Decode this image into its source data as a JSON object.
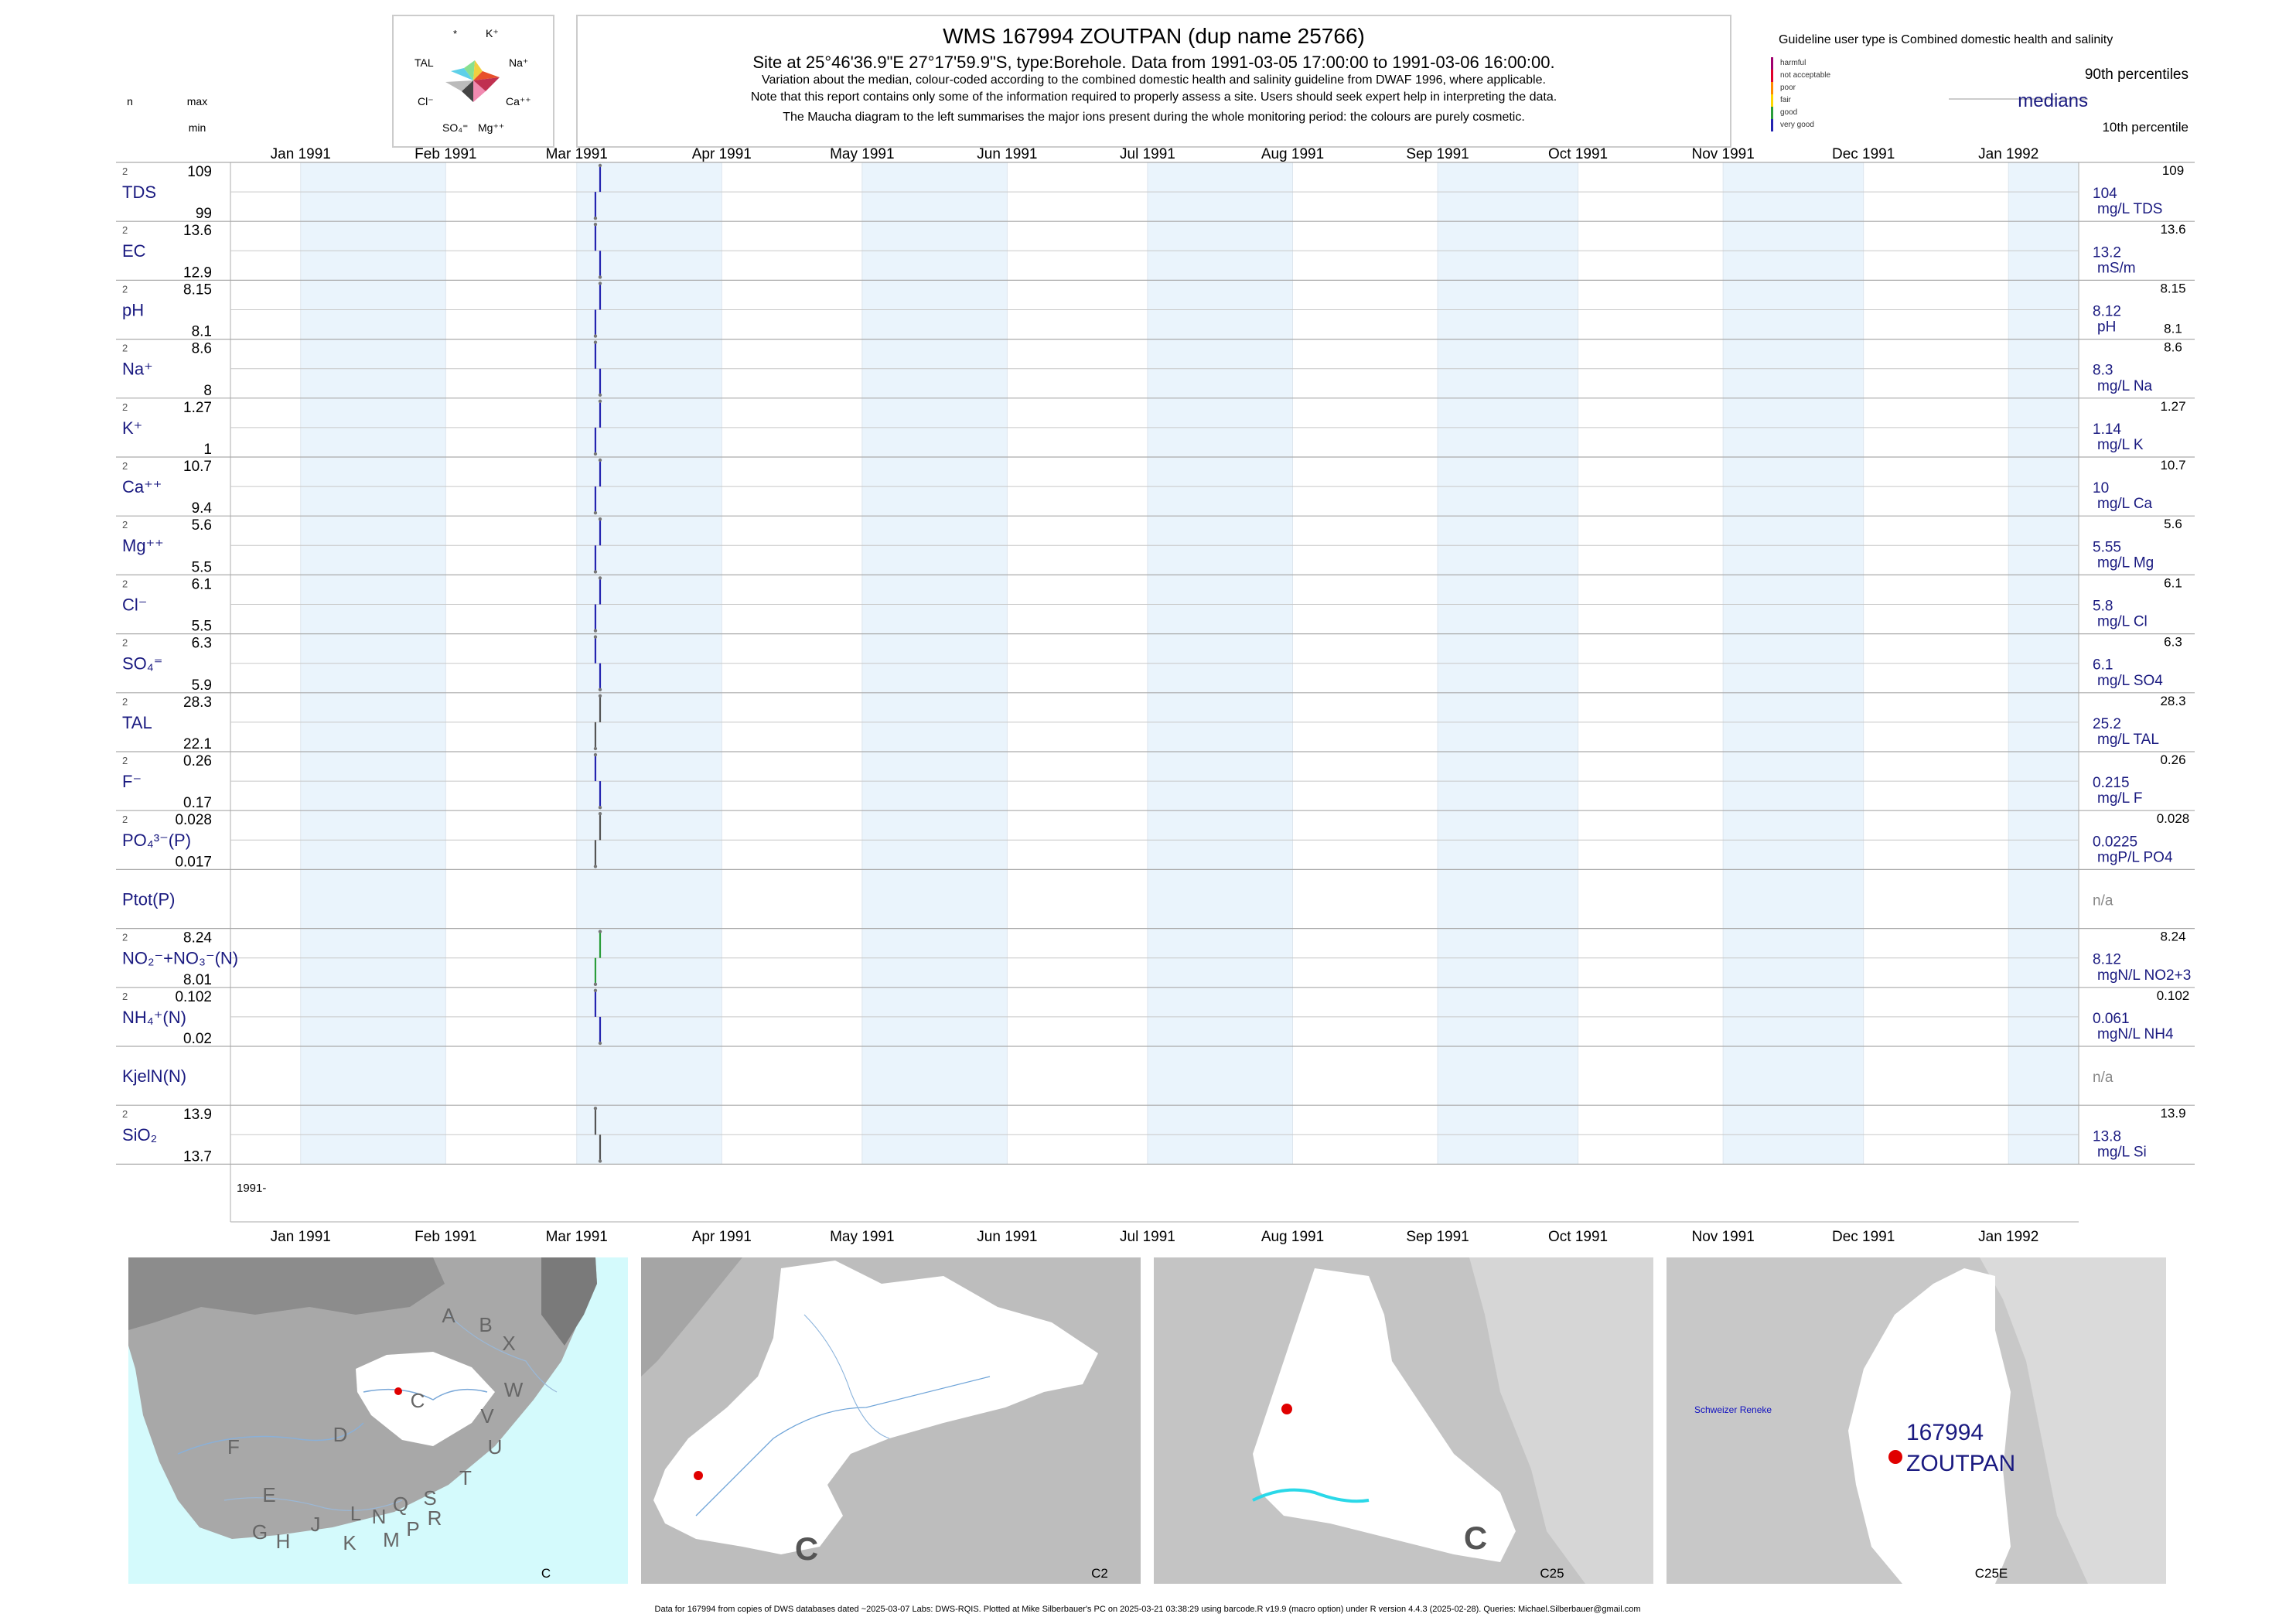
{
  "header": {
    "title": "WMS 167994 ZOUTPAN (dup name 25766)",
    "subtitle": "Site at 25°46'36.9\"E 27°17'59.9\"S, type:Borehole.  Data from 1991-03-05 17:00:00 to 1991-03-06 16:00:00.",
    "notes": [
      "Variation about the median,  colour-coded according to the combined domestic health and salinity guideline from DWAF 1996, where applicable.",
      "Note that this report contains only some of the information required to properly assess a site. Users should seek expert help in interpreting the data.",
      "The Maucha diagram to the left summarises the major ions present during the whole monitoring period: the colours are purely cosmetic."
    ]
  },
  "maucha": {
    "labels": [
      "*",
      "K⁺",
      "TAL",
      "Na⁺",
      "Cl⁻",
      "Ca⁺⁺",
      "SO₄⁼",
      "Mg⁺⁺"
    ]
  },
  "left_header": {
    "n": "n",
    "max": "max",
    "min": "min"
  },
  "legend": {
    "guideline_text": "Guideline user type is Combined domestic health and salinity",
    "classes": [
      {
        "label": "harmful",
        "color": "#a0006e"
      },
      {
        "label": "not acceptable",
        "color": "#e0002a"
      },
      {
        "label": "poor",
        "color": "#ff8c00"
      },
      {
        "label": "fair",
        "color": "#ffd700"
      },
      {
        "label": "good",
        "color": "#2a9d3a"
      },
      {
        "label": "very good",
        "color": "#2424b0"
      }
    ],
    "p90_label": "90th percentiles",
    "median_label": "medians",
    "p10_label": "10th percentile"
  },
  "chart_data": {
    "type": "timeseries-panels",
    "x_axis": {
      "ticks": [
        "Jan 1991",
        "Feb 1991",
        "Mar 1991",
        "Apr 1991",
        "May 1991",
        "Jun 1991",
        "Jul 1991",
        "Aug 1991",
        "Sep 1991",
        "Oct 1991",
        "Nov 1991",
        "Dec 1991",
        "Jan 1992"
      ],
      "year_label": "1991-",
      "range": [
        "1990-12-17",
        "1992-01-16"
      ]
    },
    "sample_dates": [
      "1991-03-05",
      "1991-03-06"
    ],
    "panels": [
      {
        "label": "TDS",
        "n": "2",
        "max": "109",
        "min": "99",
        "median": "104",
        "unit": "mg/L TDS",
        "values": [
          99,
          109
        ],
        "color": "#2424b0"
      },
      {
        "label": "EC",
        "n": "2",
        "max": "13.6",
        "min": "12.9",
        "median": "13.2",
        "unit": "mS/m",
        "values": [
          13.6,
          12.9
        ],
        "color": "#2424b0"
      },
      {
        "label": "pH",
        "n": "2",
        "max": "8.15",
        "min": "8.1",
        "median": "8.12",
        "unit": "pH",
        "values": [
          8.1,
          8.15
        ],
        "color": "#2424b0"
      },
      {
        "label": "Na⁺",
        "n": "2",
        "max": "8.6",
        "min": "8",
        "median": "8.3",
        "unit": "mg/L Na",
        "values": [
          8.6,
          8
        ],
        "color": "#2424b0"
      },
      {
        "label": "K⁺",
        "n": "2",
        "max": "1.27",
        "min": "1",
        "median": "1.14",
        "unit": "mg/L K",
        "values": [
          1,
          1.27
        ],
        "color": "#2424b0"
      },
      {
        "label": "Ca⁺⁺",
        "n": "2",
        "max": "10.7",
        "min": "9.4",
        "median": "10",
        "unit": "mg/L Ca",
        "values": [
          9.4,
          10.7
        ],
        "color": "#2424b0"
      },
      {
        "label": "Mg⁺⁺",
        "n": "2",
        "max": "5.6",
        "min": "5.5",
        "median": "5.55",
        "unit": "mg/L Mg",
        "values": [
          5.5,
          5.6
        ],
        "color": "#2424b0"
      },
      {
        "label": "Cl⁻",
        "n": "2",
        "max": "6.1",
        "min": "5.5",
        "median": "5.8",
        "unit": "mg/L Cl",
        "values": [
          5.5,
          6.1
        ],
        "color": "#2424b0"
      },
      {
        "label": "SO₄⁼",
        "n": "2",
        "max": "6.3",
        "min": "5.9",
        "median": "6.1",
        "unit": "mg/L SO4",
        "values": [
          6.3,
          5.9
        ],
        "color": "#2424b0"
      },
      {
        "label": "TAL",
        "n": "2",
        "max": "28.3",
        "min": "22.1",
        "median": "25.2",
        "unit": "mg/L TAL",
        "values": [
          22.1,
          28.3
        ],
        "color": "#555555"
      },
      {
        "label": "F⁻",
        "n": "2",
        "max": "0.26",
        "min": "0.17",
        "median": "0.215",
        "unit": "mg/L F",
        "values": [
          0.26,
          0.17
        ],
        "color": "#2424b0"
      },
      {
        "label": "PO₄³⁻(P)",
        "n": "2",
        "max": "0.028",
        "min": "0.017",
        "median": "0.0225",
        "unit": "mgP/L PO4",
        "values": [
          0.017,
          0.028
        ],
        "color": "#555555"
      },
      {
        "label": "Ptot(P)",
        "n": "",
        "max": "",
        "min": "",
        "median": "n/a",
        "unit": "",
        "values": [],
        "color": "#555555"
      },
      {
        "label": "NO₂⁻+NO₃⁻(N)",
        "n": "2",
        "max": "8.24",
        "min": "8.01",
        "median": "8.12",
        "unit": "mgN/L NO2+3",
        "values": [
          8.01,
          8.24
        ],
        "color": "#2a9d3a"
      },
      {
        "label": "NH₄⁺(N)",
        "n": "2",
        "max": "0.102",
        "min": "0.02",
        "median": "0.061",
        "unit": "mgN/L NH4",
        "values": [
          0.102,
          0.02
        ],
        "color": "#2424b0"
      },
      {
        "label": "KjelN(N)",
        "n": "",
        "max": "",
        "min": "",
        "median": "n/a",
        "unit": "",
        "values": [],
        "color": "#555555"
      },
      {
        "label": "SiO₂",
        "n": "2",
        "max": "13.9",
        "min": "13.7",
        "median": "13.8",
        "unit": "mg/L Si",
        "values": [
          13.9,
          13.7
        ],
        "color": "#555555"
      }
    ]
  },
  "maps": [
    {
      "caption": "C",
      "letters": [
        "A",
        "B",
        "X",
        "W",
        "C",
        "D",
        "V",
        "U",
        "T",
        "F",
        "E",
        "G",
        "H",
        "J",
        "K",
        "L",
        "N",
        "M",
        "Q",
        "P",
        "S",
        "R"
      ]
    },
    {
      "caption": "C2",
      "big_letter": "C"
    },
    {
      "caption": "C25",
      "big_letter": "C"
    },
    {
      "caption": "C25E",
      "site_id": "167994",
      "site_name": "ZOUTPAN",
      "town": "Schweizer Reneke"
    }
  ],
  "footer": "Data for 167994 from copies of DWS databases dated ~2025-03-07 Labs: DWS-RQIS. Plotted at Mike Silberbauer's PC on 2025-03-21 03:38:29 using barcode.R v19.9 (macro option) under R version 4.4.3 (2025-02-28). Queries: Michael.Silberbauer@gmail.com"
}
